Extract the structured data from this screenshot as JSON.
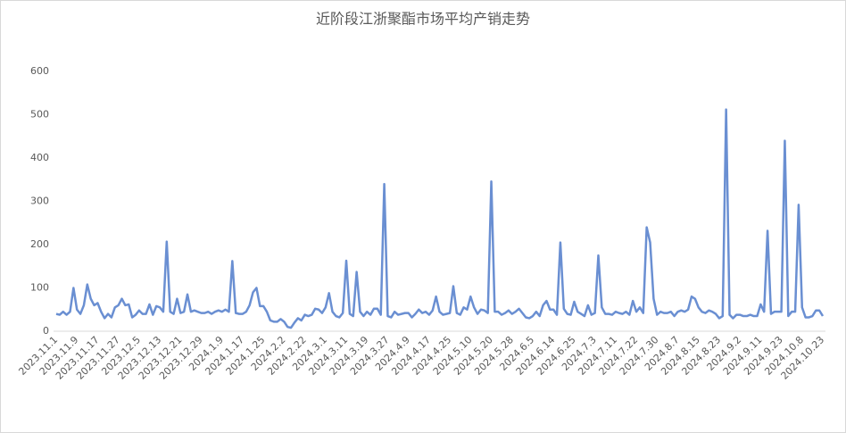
{
  "chart_data": {
    "type": "line",
    "title": "近阶段江浙聚酯市场平均产销走势",
    "categories": [
      "2023.11.1",
      null,
      null,
      null,
      null,
      null,
      "2023.11.9",
      null,
      null,
      null,
      null,
      null,
      "2023.11.17",
      null,
      null,
      null,
      null,
      null,
      "2023.11.27",
      null,
      null,
      null,
      null,
      null,
      "2023.12.5",
      null,
      null,
      null,
      null,
      null,
      "2023.12.13",
      null,
      null,
      null,
      null,
      null,
      "2023.12.21",
      null,
      null,
      null,
      null,
      null,
      "2023.12.29",
      null,
      null,
      null,
      null,
      null,
      "2024.1.9",
      null,
      null,
      null,
      null,
      null,
      "2024.1.17",
      null,
      null,
      null,
      null,
      null,
      "2024.1.25",
      null,
      null,
      null,
      null,
      null,
      "2024.2.2",
      null,
      null,
      null,
      null,
      null,
      "2024.2.22",
      null,
      null,
      null,
      null,
      null,
      "2024.3.1",
      null,
      null,
      null,
      null,
      null,
      "2024.3.11",
      null,
      null,
      null,
      null,
      null,
      "2024.3.19",
      null,
      null,
      null,
      null,
      null,
      "2024.3.27",
      null,
      null,
      null,
      null,
      null,
      "2024.4.9",
      null,
      null,
      null,
      null,
      null,
      "2024.4.17",
      null,
      null,
      null,
      null,
      null,
      "2024.4.25",
      null,
      null,
      null,
      null,
      null,
      "2024.5.10",
      null,
      null,
      null,
      null,
      null,
      "2024.5.20",
      null,
      null,
      null,
      null,
      null,
      "2024.5.28",
      null,
      null,
      null,
      null,
      null,
      "2024.6.5",
      null,
      null,
      null,
      null,
      null,
      "2024.6.14",
      null,
      null,
      null,
      null,
      null,
      "2024.6.25",
      null,
      null,
      null,
      null,
      null,
      "2024.7.3",
      null,
      null,
      null,
      null,
      null,
      "2024.7.11",
      null,
      null,
      null,
      null,
      null,
      "2024.7.22",
      null,
      null,
      null,
      null,
      null,
      "2024.7.30",
      null,
      null,
      null,
      null,
      null,
      "2024.8.7",
      null,
      null,
      null,
      null,
      null,
      "2024.8.15",
      null,
      null,
      null,
      null,
      null,
      "2024.8.23",
      null,
      null,
      null,
      null,
      null,
      "2024.9.2",
      null,
      null,
      null,
      null,
      null,
      "2024.9.11",
      null,
      null,
      null,
      null,
      null,
      "2024.9.23",
      null,
      null,
      null,
      null,
      null,
      "2024.10.8",
      null,
      null,
      null,
      null,
      null,
      "2024.10.23"
    ],
    "series": [
      {
        "color": "#6a8fd2",
        "values": [
          40,
          38,
          45,
          38,
          45,
          100,
          50,
          40,
          60,
          108,
          75,
          60,
          65,
          45,
          30,
          40,
          32,
          55,
          60,
          75,
          60,
          62,
          32,
          38,
          48,
          40,
          40,
          62,
          38,
          58,
          55,
          45,
          207,
          45,
          40,
          75,
          42,
          45,
          85,
          45,
          48,
          45,
          42,
          42,
          45,
          40,
          45,
          48,
          45,
          50,
          45,
          162,
          42,
          40,
          40,
          45,
          60,
          90,
          100,
          58,
          58,
          45,
          25,
          22,
          22,
          28,
          22,
          10,
          8,
          20,
          30,
          25,
          38,
          35,
          38,
          52,
          50,
          42,
          55,
          88,
          45,
          35,
          32,
          42,
          163,
          40,
          35,
          137,
          45,
          35,
          45,
          38,
          52,
          52,
          38,
          340,
          35,
          32,
          45,
          38,
          40,
          42,
          42,
          32,
          40,
          50,
          42,
          45,
          38,
          48,
          80,
          45,
          38,
          40,
          42,
          104,
          42,
          38,
          55,
          50,
          80,
          55,
          40,
          50,
          48,
          42,
          346,
          45,
          45,
          38,
          42,
          48,
          40,
          45,
          52,
          42,
          32,
          30,
          35,
          45,
          35,
          60,
          70,
          50,
          50,
          38,
          205,
          52,
          40,
          38,
          68,
          45,
          40,
          35,
          60,
          38,
          42,
          175,
          55,
          40,
          40,
          38,
          45,
          42,
          40,
          45,
          38,
          70,
          45,
          55,
          42,
          240,
          205,
          75,
          38,
          45,
          42,
          42,
          45,
          35,
          45,
          48,
          45,
          50,
          80,
          75,
          55,
          45,
          42,
          48,
          45,
          40,
          30,
          35,
          512,
          38,
          30,
          38,
          38,
          35,
          35,
          38,
          35,
          35,
          62,
          45,
          232,
          40,
          45,
          45,
          45,
          440,
          35,
          45,
          45,
          292,
          55,
          32,
          32,
          35,
          48,
          48,
          35
        ]
      }
    ],
    "ylim": [
      0,
      600
    ],
    "yticks": [
      0,
      100,
      200,
      300,
      400,
      500,
      600
    ]
  }
}
